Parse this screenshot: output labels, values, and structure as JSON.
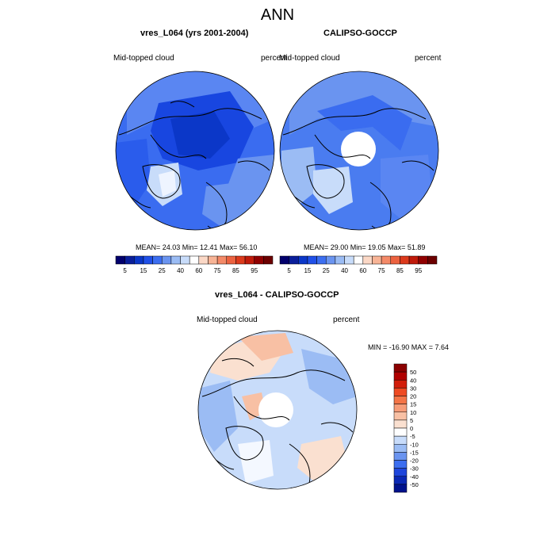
{
  "figure": {
    "title": "ANN",
    "panels": [
      {
        "title": "vres_L064 (yrs 2001-2004)",
        "left_label": "Mid-topped cloud",
        "right_label": "percent",
        "stats": "MEAN=  24.03  Min=  12.41  Max=  56.10"
      },
      {
        "title": "CALIPSO-GOCCP",
        "left_label": "Mid-topped cloud",
        "right_label": "percent",
        "stats": "MEAN=  29.00  Min=  19.05  Max=  51.89"
      },
      {
        "title": "vres_L064 - CALIPSO-GOCCP",
        "left_label": "Mid-topped cloud",
        "right_label": "percent",
        "stats": "MIN = -16.90 MAX =   7.64"
      }
    ]
  },
  "chart_data": [
    {
      "type": "heatmap",
      "projection": "polar stereographic (north pole)",
      "title": "vres_L064 (yrs 2001-2004)",
      "variable": "Mid-topped cloud",
      "units": "percent",
      "mean": 24.03,
      "min": 12.41,
      "max": 56.1,
      "colorbar": {
        "orientation": "horizontal",
        "tick_labels": [
          "5",
          "15",
          "25",
          "40",
          "60",
          "75",
          "85",
          "95"
        ],
        "colors": [
          "#02006c",
          "#0a1e9a",
          "#0b37c8",
          "#2050e8",
          "#3c6ef0",
          "#6a94f0",
          "#9bbcf4",
          "#c8dcfa",
          "#ffffff",
          "#fbd8c6",
          "#f8b496",
          "#f48a68",
          "#ec6240",
          "#dc3a1c",
          "#c01a0a",
          "#900000",
          "#6c0000"
        ]
      }
    },
    {
      "type": "heatmap",
      "projection": "polar stereographic (north pole)",
      "title": "CALIPSO-GOCCP",
      "variable": "Mid-topped cloud",
      "units": "percent",
      "mean": 29.0,
      "min": 19.05,
      "max": 51.89,
      "colorbar": {
        "orientation": "horizontal",
        "tick_labels": [
          "5",
          "15",
          "25",
          "40",
          "60",
          "75",
          "85",
          "95"
        ],
        "colors": [
          "#02006c",
          "#0a1e9a",
          "#0b37c8",
          "#2050e8",
          "#3c6ef0",
          "#6a94f0",
          "#9bbcf4",
          "#c8dcfa",
          "#ffffff",
          "#fbd8c6",
          "#f8b496",
          "#f48a68",
          "#ec6240",
          "#dc3a1c",
          "#c01a0a",
          "#900000",
          "#6c0000"
        ]
      }
    },
    {
      "type": "heatmap",
      "projection": "polar stereographic (north pole)",
      "title": "vres_L064 - CALIPSO-GOCCP",
      "variable": "Mid-topped cloud",
      "units": "percent",
      "min": -16.9,
      "max": 7.64,
      "colorbar": {
        "orientation": "vertical",
        "tick_labels": [
          "50",
          "40",
          "30",
          "20",
          "15",
          "10",
          "5",
          "0",
          "-5",
          "-10",
          "-15",
          "-20",
          "-30",
          "-40",
          "-50"
        ],
        "colors": [
          "#8b0000",
          "#b00000",
          "#d21e0a",
          "#ee4a22",
          "#f47446",
          "#f69c78",
          "#f8c0a4",
          "#fae0d0",
          "#ffffff",
          "#c8dcfa",
          "#9bbcf4",
          "#6a94f0",
          "#3c6ef0",
          "#1e46dc",
          "#0a28b4",
          "#00128c"
        ]
      }
    }
  ]
}
